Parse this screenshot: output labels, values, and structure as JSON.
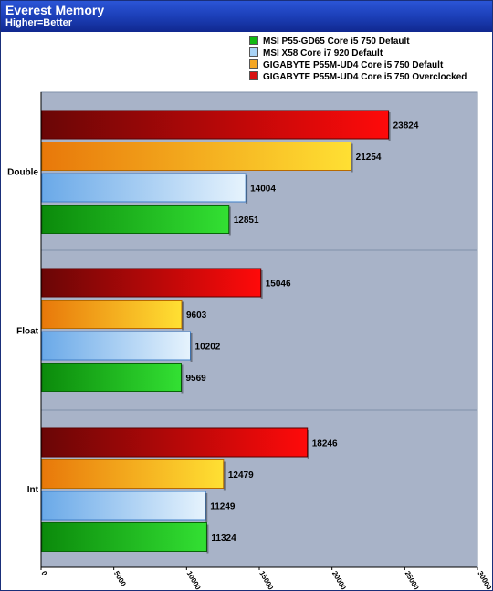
{
  "header": {
    "title": "Everest Memory",
    "subtitle": "Higher=Better"
  },
  "chart_data": {
    "type": "bar",
    "orientation": "horizontal",
    "title": "Everest Memory",
    "subtitle": "Higher=Better",
    "categories": [
      "Double",
      "Float",
      "Int"
    ],
    "series": [
      {
        "name": "MSI P55-GD65 Core i5 750 Default",
        "values": [
          12851,
          9569,
          11324
        ],
        "color": "#11b811"
      },
      {
        "name": "MSI X58 Core i7 920 Default",
        "values": [
          14004,
          10202,
          11249
        ],
        "color": "#a9d3f5"
      },
      {
        "name": "GIGABYTE P55M-UD4 Core i5 750 Default",
        "values": [
          21254,
          9603,
          12479
        ],
        "color": "#f5a623"
      },
      {
        "name": "GIGABYTE P55M-UD4 Core i5 750 Overclocked",
        "values": [
          23824,
          15046,
          18246
        ],
        "color": "#d81010"
      }
    ],
    "xlim": [
      0,
      30000
    ],
    "xticks": [
      0,
      5000,
      10000,
      15000,
      20000,
      25000,
      30000
    ],
    "legend_position": "top-right",
    "grid": false
  }
}
